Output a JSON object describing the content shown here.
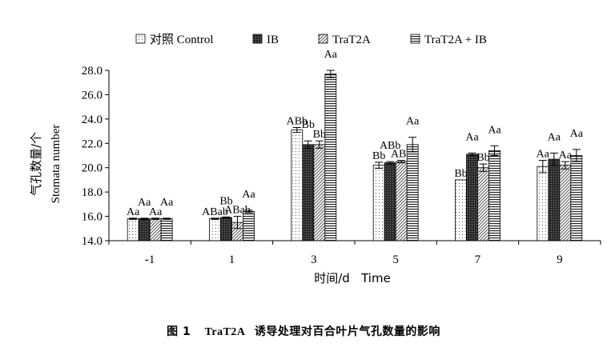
{
  "chart_data": {
    "type": "bar",
    "xlabel": "时间/d   Time",
    "ylabel_cn": "气孔数量/个",
    "ylabel_en": "Stomata number",
    "ylim": [
      14.0,
      28.0
    ],
    "yticks": [
      "14.0",
      "16.0",
      "18.0",
      "20.0",
      "22.0",
      "24.0",
      "26.0",
      "28.0"
    ],
    "categories": [
      "-1",
      "1",
      "3",
      "5",
      "7",
      "9"
    ],
    "legend_position": "top",
    "grid": false,
    "series": [
      {
        "name": "对照 Control",
        "pattern": "dots",
        "values": [
          15.8,
          15.8,
          23.1,
          20.2,
          19.0,
          20.1
        ],
        "errors": [
          0.05,
          0.05,
          0.2,
          0.25,
          0.0,
          0.5
        ],
        "labels": [
          "Aa",
          "ABab",
          "ABb",
          "Bb",
          "Bb",
          "Aa"
        ]
      },
      {
        "name": "IB",
        "pattern": "dark",
        "values": [
          15.8,
          15.9,
          21.9,
          20.4,
          21.1,
          20.7
        ],
        "errors": [
          0.05,
          0.05,
          0.3,
          0.1,
          0.1,
          0.5
        ],
        "labels": [
          "Aa",
          "Bb",
          "Bb",
          "ABb",
          "Aa",
          "Aa"
        ]
      },
      {
        "name": "TraT2A",
        "pattern": "diagonal",
        "values": [
          15.8,
          15.5,
          21.9,
          20.5,
          20.0,
          20.2
        ],
        "errors": [
          0.05,
          0.5,
          0.3,
          0.1,
          0.3,
          0.3
        ],
        "labels": [
          "Aa",
          "ABab",
          "Bb",
          "ABb",
          "Bb",
          "Aa"
        ]
      },
      {
        "name": "TraT2A + IB",
        "pattern": "hlines",
        "values": [
          15.8,
          16.4,
          27.7,
          21.9,
          21.4,
          21.0
        ],
        "errors": [
          0.05,
          0.1,
          0.3,
          0.6,
          0.4,
          0.5
        ],
        "labels": [
          "Aa",
          "Aa",
          "Aa",
          "Aa",
          "Aa",
          "Aa"
        ]
      }
    ]
  },
  "caption": {
    "fig": "图 1",
    "text_latin": "TraT2A",
    "text_cn": "诱导处理对百合叶片气孔数量的影响"
  }
}
